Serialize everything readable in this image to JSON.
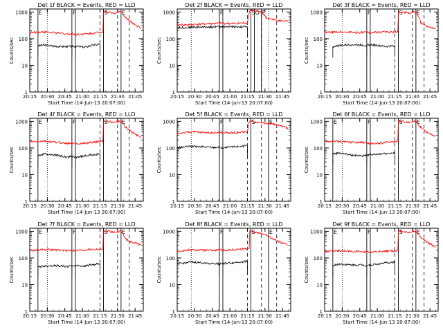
{
  "figure": {
    "ytitle": "Counts/sec",
    "xtitle": "Start Time (14-Jun-13 20:07:00)",
    "xtick_labels": [
      "20:15",
      "20:30",
      "20:45",
      "21:00",
      "21:15",
      "21:30",
      "21:45"
    ],
    "ytick_labels": [
      "1",
      "10",
      "100",
      "1000"
    ],
    "colors": {
      "events": "#000000",
      "lld": "#ff0000",
      "axis": "#000000"
    }
  },
  "chart_data": [
    {
      "type": "line",
      "title": "Det 1f BLACK = Events, RED = LLD",
      "x_range_min": [
        8,
        105
      ],
      "ylim": [
        1,
        1300
      ],
      "ylog": true,
      "markers": [
        {
          "t": 15,
          "label": "E",
          "style": "solid"
        },
        {
          "t": 44,
          "label": "F",
          "style": "solid"
        },
        {
          "t": 47,
          "label": "",
          "style": "solid"
        },
        {
          "t": 71,
          "label": "S",
          "style": "solid"
        },
        {
          "t": 86,
          "label": "E",
          "style": "solid"
        }
      ],
      "vdotted": [
        23
      ],
      "vdashed": [
        68,
        83,
        93
      ],
      "series": [
        {
          "role": "events",
          "x": [
            15,
            20,
            30,
            40,
            44,
            47,
            55,
            60,
            68
          ],
          "y": [
            55,
            58,
            52,
            50,
            52,
            52,
            48,
            55,
            62
          ],
          "drops": [
            15,
            44,
            47,
            68
          ]
        },
        {
          "role": "lld",
          "x": [
            8,
            15,
            20,
            30,
            40,
            44,
            47,
            55,
            60,
            68,
            70,
            71,
            75,
            80,
            84,
            86,
            90,
            95,
            100,
            103
          ],
          "y": [
            170,
            175,
            180,
            165,
            150,
            155,
            145,
            150,
            160,
            175,
            180,
            1000,
            1000,
            900,
            1000,
            1000,
            600,
            400,
            300,
            250
          ]
        }
      ]
    },
    {
      "type": "line",
      "title": "Det 2f BLACK = Events, RED = LLD",
      "x_range_min": [
        8,
        105
      ],
      "ylim": [
        1,
        1300
      ],
      "ylog": true,
      "markers": [
        {
          "t": 44,
          "label": "F",
          "style": "solid"
        },
        {
          "t": 47,
          "label": "",
          "style": "solid"
        },
        {
          "t": 71,
          "label": "S",
          "style": "solid"
        },
        {
          "t": 74,
          "label": "O",
          "style": "solid"
        },
        {
          "t": 80,
          "label": "E",
          "style": "solid"
        }
      ],
      "vdotted": [
        20,
        44,
        86
      ],
      "vdashed": [
        68,
        80,
        93
      ],
      "series": [
        {
          "role": "events",
          "x": [
            8,
            15,
            20,
            30,
            44,
            47,
            55,
            60,
            68
          ],
          "y": [
            260,
            260,
            270,
            275,
            280,
            285,
            280,
            280,
            280
          ],
          "drops": [
            8,
            44,
            47,
            68
          ]
        },
        {
          "role": "lld",
          "x": [
            8,
            15,
            20,
            30,
            40,
            44,
            47,
            55,
            60,
            65,
            68,
            70,
            72,
            75,
            80,
            84,
            90,
            95,
            103
          ],
          "y": [
            330,
            330,
            340,
            360,
            370,
            380,
            375,
            370,
            380,
            390,
            380,
            1100,
            1150,
            1100,
            1000,
            600,
            520,
            480,
            440
          ]
        }
      ]
    },
    {
      "type": "line",
      "title": "Det 3f BLACK = Events, RED = LLD",
      "x_range_min": [
        8,
        105
      ],
      "ylim": [
        1,
        1300
      ],
      "ylog": true,
      "markers": [
        {
          "t": 44,
          "label": "F",
          "style": "solid"
        },
        {
          "t": 47,
          "label": "",
          "style": "solid"
        },
        {
          "t": 71,
          "label": "S",
          "style": "solid"
        },
        {
          "t": 86,
          "label": "E",
          "style": "solid"
        }
      ],
      "vdotted": [
        23,
        86
      ],
      "vdashed": [
        68,
        83,
        93
      ],
      "series": [
        {
          "role": "events",
          "x": [
            15,
            20,
            30,
            40,
            44,
            47,
            55,
            60,
            68
          ],
          "y": [
            50,
            55,
            60,
            58,
            55,
            60,
            55,
            50,
            55
          ],
          "drops": [
            15,
            44,
            47,
            68
          ]
        },
        {
          "role": "lld",
          "x": [
            8,
            15,
            20,
            30,
            40,
            44,
            47,
            55,
            60,
            68,
            70,
            71,
            75,
            80,
            84,
            86,
            90,
            95,
            100,
            103
          ],
          "y": [
            170,
            175,
            180,
            175,
            170,
            175,
            170,
            175,
            180,
            175,
            180,
            1000,
            1000,
            900,
            1000,
            1000,
            400,
            300,
            260,
            250
          ]
        }
      ]
    },
    {
      "type": "line",
      "title": "Det 4f BLACK = Events, RED = LLD",
      "x_range_min": [
        8,
        105
      ],
      "ylim": [
        1,
        1300
      ],
      "ylog": true,
      "markers": [
        {
          "t": 15,
          "label": "E",
          "style": "solid"
        },
        {
          "t": 44,
          "label": "F",
          "style": "solid"
        },
        {
          "t": 47,
          "label": "",
          "style": "solid"
        },
        {
          "t": 71,
          "label": "S",
          "style": "solid"
        },
        {
          "t": 86,
          "label": "E",
          "style": "solid"
        }
      ],
      "vdotted": [
        23
      ],
      "vdashed": [
        68,
        83,
        93
      ],
      "series": [
        {
          "role": "events",
          "x": [
            15,
            20,
            30,
            40,
            44,
            47,
            55,
            60,
            68
          ],
          "y": [
            50,
            60,
            55,
            45,
            48,
            45,
            50,
            55,
            60
          ],
          "drops": [
            15,
            44,
            47,
            68
          ]
        },
        {
          "role": "lld",
          "x": [
            8,
            15,
            20,
            30,
            40,
            44,
            47,
            55,
            60,
            68,
            70,
            71,
            75,
            80,
            84,
            86,
            90,
            95,
            100,
            103
          ],
          "y": [
            170,
            175,
            180,
            165,
            150,
            155,
            145,
            150,
            160,
            175,
            180,
            1000,
            1000,
            900,
            1000,
            1000,
            600,
            400,
            300,
            250
          ]
        }
      ]
    },
    {
      "type": "line",
      "title": "Det 5f BLACK = Events, RED = LLD",
      "x_range_min": [
        8,
        105
      ],
      "ylim": [
        1,
        1300
      ],
      "ylog": true,
      "markers": [
        {
          "t": 44,
          "label": "F",
          "style": "solid"
        },
        {
          "t": 47,
          "label": "",
          "style": "solid"
        },
        {
          "t": 71,
          "label": "S",
          "style": "solid"
        },
        {
          "t": 86,
          "label": "E",
          "style": "solid"
        }
      ],
      "vdotted": [
        20,
        44,
        86
      ],
      "vdashed": [
        68,
        80,
        93
      ],
      "series": [
        {
          "role": "events",
          "x": [
            8,
            15,
            20,
            30,
            44,
            47,
            55,
            60,
            68
          ],
          "y": [
            100,
            110,
            115,
            110,
            105,
            100,
            110,
            115,
            120
          ],
          "drops": [
            8,
            44,
            47,
            68
          ]
        },
        {
          "role": "lld",
          "x": [
            8,
            15,
            20,
            30,
            40,
            44,
            47,
            55,
            60,
            65,
            68,
            70,
            72,
            75,
            80,
            84,
            90,
            95,
            103
          ],
          "y": [
            350,
            380,
            400,
            380,
            370,
            380,
            375,
            370,
            380,
            400,
            420,
            1000,
            1000,
            950,
            900,
            850,
            800,
            700,
            550
          ]
        }
      ]
    },
    {
      "type": "line",
      "title": "Det 6f BLACK = Events, RED = LLD",
      "x_range_min": [
        8,
        105
      ],
      "ylim": [
        1,
        1300
      ],
      "ylog": true,
      "markers": [
        {
          "t": 15,
          "label": "E",
          "style": "solid"
        },
        {
          "t": 44,
          "label": "F",
          "style": "solid"
        },
        {
          "t": 47,
          "label": "",
          "style": "solid"
        },
        {
          "t": 71,
          "label": "S",
          "style": "solid"
        },
        {
          "t": 86,
          "label": "E",
          "style": "solid"
        }
      ],
      "vdotted": [
        23
      ],
      "vdashed": [
        68,
        83,
        93
      ],
      "series": [
        {
          "role": "events",
          "x": [
            15,
            20,
            30,
            40,
            44,
            47,
            55,
            60,
            68
          ],
          "y": [
            60,
            65,
            55,
            50,
            55,
            55,
            60,
            62,
            65
          ],
          "drops": [
            15,
            44,
            47,
            68
          ]
        },
        {
          "role": "lld",
          "x": [
            8,
            15,
            20,
            30,
            40,
            44,
            47,
            55,
            60,
            68,
            70,
            71,
            75,
            80,
            84,
            86,
            90,
            95,
            100,
            103
          ],
          "y": [
            170,
            180,
            175,
            165,
            160,
            155,
            145,
            150,
            160,
            175,
            180,
            1000,
            1000,
            900,
            1000,
            1000,
            600,
            400,
            300,
            260
          ]
        }
      ]
    },
    {
      "type": "line",
      "title": "Det 7f BLACK = Events, RED = LLD",
      "x_range_min": [
        8,
        105
      ],
      "ylim": [
        1,
        1300
      ],
      "ylog": true,
      "markers": [
        {
          "t": 15,
          "label": "E",
          "style": "solid"
        },
        {
          "t": 44,
          "label": "F",
          "style": "solid"
        },
        {
          "t": 47,
          "label": "",
          "style": "solid"
        },
        {
          "t": 71,
          "label": "S",
          "style": "solid"
        },
        {
          "t": 86,
          "label": "E",
          "style": "solid"
        }
      ],
      "vdotted": [
        23
      ],
      "vdashed": [
        68,
        83,
        93
      ],
      "series": [
        {
          "role": "events",
          "x": [
            15,
            20,
            30,
            40,
            44,
            47,
            55,
            60,
            68
          ],
          "y": [
            45,
            50,
            52,
            48,
            50,
            52,
            50,
            55,
            60
          ],
          "drops": [
            15,
            44,
            47,
            68
          ]
        },
        {
          "role": "lld",
          "x": [
            8,
            15,
            20,
            30,
            40,
            44,
            47,
            55,
            60,
            68,
            70,
            71,
            75,
            80,
            84,
            86,
            90,
            95,
            100,
            103
          ],
          "y": [
            190,
            200,
            210,
            200,
            190,
            195,
            190,
            200,
            210,
            215,
            220,
            1000,
            1000,
            900,
            1000,
            1000,
            500,
            400,
            350,
            300
          ]
        }
      ]
    },
    {
      "type": "line",
      "title": "Det 8f BLACK = Events, RED = LLD",
      "x_range_min": [
        8,
        105
      ],
      "ylim": [
        1,
        1300
      ],
      "ylog": true,
      "markers": [
        {
          "t": 44,
          "label": "F",
          "style": "solid"
        },
        {
          "t": 47,
          "label": "",
          "style": "solid"
        },
        {
          "t": 71,
          "label": "S",
          "style": "solid"
        },
        {
          "t": 86,
          "label": "E",
          "style": "solid"
        }
      ],
      "vdotted": [
        20,
        44,
        86
      ],
      "vdashed": [
        68,
        80,
        93
      ],
      "series": [
        {
          "role": "events",
          "x": [
            8,
            15,
            20,
            30,
            44,
            47,
            55,
            60,
            68
          ],
          "y": [
            60,
            65,
            70,
            65,
            60,
            62,
            65,
            70,
            75
          ],
          "drops": [
            8,
            44,
            47,
            68
          ]
        },
        {
          "role": "lld",
          "x": [
            8,
            15,
            20,
            30,
            40,
            44,
            47,
            55,
            60,
            65,
            68,
            70,
            72,
            75,
            80,
            84,
            90,
            95,
            103
          ],
          "y": [
            170,
            190,
            200,
            195,
            190,
            200,
            195,
            200,
            210,
            220,
            230,
            1000,
            1000,
            900,
            850,
            700,
            500,
            400,
            300
          ]
        }
      ]
    },
    {
      "type": "line",
      "title": "Det 9f BLACK = Events, RED = LLD",
      "x_range_min": [
        8,
        105
      ],
      "ylim": [
        1,
        1300
      ],
      "ylog": true,
      "markers": [
        {
          "t": 15,
          "label": "E",
          "style": "solid"
        },
        {
          "t": 44,
          "label": "F",
          "style": "solid"
        },
        {
          "t": 47,
          "label": "",
          "style": "solid"
        },
        {
          "t": 71,
          "label": "S",
          "style": "solid"
        },
        {
          "t": 86,
          "label": "E",
          "style": "solid"
        }
      ],
      "vdotted": [
        23
      ],
      "vdashed": [
        68,
        83,
        93
      ],
      "series": [
        {
          "role": "events",
          "x": [
            15,
            20,
            30,
            40,
            44,
            47,
            55,
            60,
            68
          ],
          "y": [
            50,
            60,
            55,
            55,
            52,
            55,
            60,
            65,
            70
          ],
          "drops": [
            15,
            44,
            47,
            68
          ]
        },
        {
          "role": "lld",
          "x": [
            8,
            15,
            20,
            30,
            40,
            44,
            47,
            55,
            60,
            68,
            70,
            71,
            75,
            80,
            84,
            86,
            90,
            95,
            100,
            103
          ],
          "y": [
            170,
            180,
            185,
            180,
            170,
            175,
            165,
            170,
            180,
            185,
            190,
            1000,
            1000,
            900,
            1000,
            1000,
            600,
            400,
            300,
            260
          ]
        }
      ]
    }
  ]
}
